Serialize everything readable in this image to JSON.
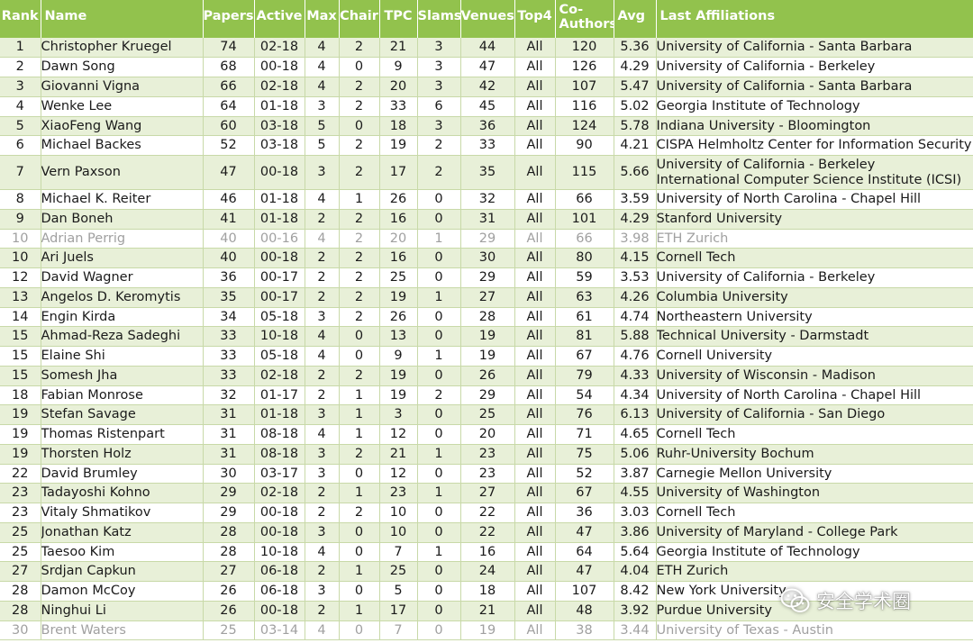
{
  "headers": {
    "rank": "Rank",
    "name": "Name",
    "papers": "Papers",
    "active": "Active",
    "max": "Max",
    "chair": "Chair",
    "tpc": "TPC",
    "slams": "Slams",
    "venues": "Venues",
    "top4": "Top4",
    "coauthors_1": "Co-",
    "coauthors_2": "Authors",
    "avg": "Avg",
    "affiliations": "Last Affiliations"
  },
  "rows": [
    {
      "rank": "1",
      "name": "Christopher Kruegel",
      "papers": "74",
      "active": "02-18",
      "max": "4",
      "chair": "2",
      "tpc": "21",
      "slams": "3",
      "venues": "44",
      "top4": "All",
      "coauthors": "120",
      "avg": "5.36",
      "affiliation": "University of California - Santa Barbara"
    },
    {
      "rank": "2",
      "name": "Dawn Song",
      "papers": "68",
      "active": "00-18",
      "max": "4",
      "chair": "0",
      "tpc": "9",
      "slams": "3",
      "venues": "47",
      "top4": "All",
      "coauthors": "126",
      "avg": "4.29",
      "affiliation": "University of California - Berkeley"
    },
    {
      "rank": "3",
      "name": "Giovanni Vigna",
      "papers": "66",
      "active": "02-18",
      "max": "4",
      "chair": "2",
      "tpc": "20",
      "slams": "3",
      "venues": "42",
      "top4": "All",
      "coauthors": "107",
      "avg": "5.47",
      "affiliation": "University of California - Santa Barbara"
    },
    {
      "rank": "4",
      "name": "Wenke Lee",
      "papers": "64",
      "active": "01-18",
      "max": "3",
      "chair": "2",
      "tpc": "33",
      "slams": "6",
      "venues": "45",
      "top4": "All",
      "coauthors": "116",
      "avg": "5.02",
      "affiliation": "Georgia Institute of Technology"
    },
    {
      "rank": "5",
      "name": "XiaoFeng Wang",
      "papers": "60",
      "active": "03-18",
      "max": "5",
      "chair": "0",
      "tpc": "18",
      "slams": "3",
      "venues": "36",
      "top4": "All",
      "coauthors": "124",
      "avg": "5.78",
      "affiliation": "Indiana University - Bloomington"
    },
    {
      "rank": "6",
      "name": "Michael Backes",
      "papers": "52",
      "active": "03-18",
      "max": "5",
      "chair": "2",
      "tpc": "19",
      "slams": "2",
      "venues": "33",
      "top4": "All",
      "coauthors": "90",
      "avg": "4.21",
      "affiliation": "CISPA Helmholtz Center for Information Security"
    },
    {
      "rank": "7",
      "name": "Vern Paxson",
      "papers": "47",
      "active": "00-18",
      "max": "3",
      "chair": "2",
      "tpc": "17",
      "slams": "2",
      "venues": "35",
      "top4": "All",
      "coauthors": "115",
      "avg": "5.66",
      "affiliation": "University of California - Berkeley",
      "affiliation2": "International Computer Science Institute (ICSI)"
    },
    {
      "rank": "8",
      "name": "Michael K. Reiter",
      "papers": "46",
      "active": "01-18",
      "max": "4",
      "chair": "1",
      "tpc": "26",
      "slams": "0",
      "venues": "32",
      "top4": "All",
      "coauthors": "66",
      "avg": "3.59",
      "affiliation": "University of North Carolina - Chapel Hill"
    },
    {
      "rank": "9",
      "name": "Dan Boneh",
      "papers": "41",
      "active": "01-18",
      "max": "2",
      "chair": "2",
      "tpc": "16",
      "slams": "0",
      "venues": "31",
      "top4": "All",
      "coauthors": "101",
      "avg": "4.29",
      "affiliation": "Stanford University"
    },
    {
      "rank": "10",
      "name": "Adrian Perrig",
      "papers": "40",
      "active": "00-16",
      "max": "4",
      "chair": "2",
      "tpc": "20",
      "slams": "1",
      "venues": "29",
      "top4": "All",
      "coauthors": "66",
      "avg": "3.98",
      "affiliation": "ETH Zurich",
      "dim": true
    },
    {
      "rank": "10",
      "name": "Ari Juels",
      "papers": "40",
      "active": "00-18",
      "max": "2",
      "chair": "2",
      "tpc": "16",
      "slams": "0",
      "venues": "30",
      "top4": "All",
      "coauthors": "80",
      "avg": "4.15",
      "affiliation": "Cornell Tech"
    },
    {
      "rank": "12",
      "name": "David Wagner",
      "papers": "36",
      "active": "00-17",
      "max": "2",
      "chair": "2",
      "tpc": "25",
      "slams": "0",
      "venues": "29",
      "top4": "All",
      "coauthors": "59",
      "avg": "3.53",
      "affiliation": "University of California - Berkeley"
    },
    {
      "rank": "13",
      "name": "Angelos D. Keromytis",
      "papers": "35",
      "active": "00-17",
      "max": "2",
      "chair": "2",
      "tpc": "19",
      "slams": "1",
      "venues": "27",
      "top4": "All",
      "coauthors": "63",
      "avg": "4.26",
      "affiliation": "Columbia University"
    },
    {
      "rank": "14",
      "name": "Engin Kirda",
      "papers": "34",
      "active": "05-18",
      "max": "3",
      "chair": "2",
      "tpc": "26",
      "slams": "0",
      "venues": "28",
      "top4": "All",
      "coauthors": "61",
      "avg": "4.74",
      "affiliation": "Northeastern University"
    },
    {
      "rank": "15",
      "name": "Ahmad-Reza Sadeghi",
      "papers": "33",
      "active": "10-18",
      "max": "4",
      "chair": "0",
      "tpc": "13",
      "slams": "0",
      "venues": "19",
      "top4": "All",
      "coauthors": "81",
      "avg": "5.88",
      "affiliation": "Technical University - Darmstadt"
    },
    {
      "rank": "15",
      "name": "Elaine Shi",
      "papers": "33",
      "active": "05-18",
      "max": "4",
      "chair": "0",
      "tpc": "9",
      "slams": "1",
      "venues": "19",
      "top4": "All",
      "coauthors": "67",
      "avg": "4.76",
      "affiliation": "Cornell University"
    },
    {
      "rank": "15",
      "name": "Somesh Jha",
      "papers": "33",
      "active": "02-18",
      "max": "2",
      "chair": "2",
      "tpc": "19",
      "slams": "0",
      "venues": "26",
      "top4": "All",
      "coauthors": "79",
      "avg": "4.33",
      "affiliation": "University of Wisconsin - Madison"
    },
    {
      "rank": "18",
      "name": "Fabian Monrose",
      "papers": "32",
      "active": "01-17",
      "max": "2",
      "chair": "1",
      "tpc": "19",
      "slams": "2",
      "venues": "29",
      "top4": "All",
      "coauthors": "54",
      "avg": "4.34",
      "affiliation": "University of North Carolina - Chapel Hill"
    },
    {
      "rank": "19",
      "name": "Stefan Savage",
      "papers": "31",
      "active": "01-18",
      "max": "3",
      "chair": "1",
      "tpc": "3",
      "slams": "0",
      "venues": "25",
      "top4": "All",
      "coauthors": "76",
      "avg": "6.13",
      "affiliation": "University of California - San Diego"
    },
    {
      "rank": "19",
      "name": "Thomas Ristenpart",
      "papers": "31",
      "active": "08-18",
      "max": "4",
      "chair": "1",
      "tpc": "12",
      "slams": "0",
      "venues": "20",
      "top4": "All",
      "coauthors": "71",
      "avg": "4.65",
      "affiliation": "Cornell Tech"
    },
    {
      "rank": "19",
      "name": "Thorsten Holz",
      "papers": "31",
      "active": "08-18",
      "max": "3",
      "chair": "2",
      "tpc": "21",
      "slams": "1",
      "venues": "23",
      "top4": "All",
      "coauthors": "75",
      "avg": "5.06",
      "affiliation": "Ruhr-University Bochum"
    },
    {
      "rank": "22",
      "name": "David Brumley",
      "papers": "30",
      "active": "03-17",
      "max": "3",
      "chair": "0",
      "tpc": "12",
      "slams": "0",
      "venues": "23",
      "top4": "All",
      "coauthors": "52",
      "avg": "3.87",
      "affiliation": "Carnegie Mellon University"
    },
    {
      "rank": "23",
      "name": "Tadayoshi Kohno",
      "papers": "29",
      "active": "02-18",
      "max": "2",
      "chair": "1",
      "tpc": "23",
      "slams": "1",
      "venues": "27",
      "top4": "All",
      "coauthors": "67",
      "avg": "4.55",
      "affiliation": "University of Washington"
    },
    {
      "rank": "23",
      "name": "Vitaly Shmatikov",
      "papers": "29",
      "active": "00-18",
      "max": "2",
      "chair": "2",
      "tpc": "10",
      "slams": "0",
      "venues": "22",
      "top4": "All",
      "coauthors": "36",
      "avg": "3.03",
      "affiliation": "Cornell Tech"
    },
    {
      "rank": "25",
      "name": "Jonathan Katz",
      "papers": "28",
      "active": "00-18",
      "max": "3",
      "chair": "0",
      "tpc": "10",
      "slams": "0",
      "venues": "22",
      "top4": "All",
      "coauthors": "47",
      "avg": "3.86",
      "affiliation": "University of Maryland - College Park"
    },
    {
      "rank": "25",
      "name": "Taesoo Kim",
      "papers": "28",
      "active": "10-18",
      "max": "4",
      "chair": "0",
      "tpc": "7",
      "slams": "1",
      "venues": "16",
      "top4": "All",
      "coauthors": "64",
      "avg": "5.64",
      "affiliation": "Georgia Institute of Technology"
    },
    {
      "rank": "27",
      "name": "Srdjan Capkun",
      "papers": "27",
      "active": "06-18",
      "max": "2",
      "chair": "1",
      "tpc": "25",
      "slams": "0",
      "venues": "24",
      "top4": "All",
      "coauthors": "47",
      "avg": "4.04",
      "affiliation": "ETH Zurich"
    },
    {
      "rank": "28",
      "name": "Damon McCoy",
      "papers": "26",
      "active": "06-18",
      "max": "3",
      "chair": "0",
      "tpc": "5",
      "slams": "0",
      "venues": "18",
      "top4": "All",
      "coauthors": "107",
      "avg": "8.42",
      "affiliation": "New York University"
    },
    {
      "rank": "28",
      "name": "Ninghui Li",
      "papers": "26",
      "active": "00-18",
      "max": "2",
      "chair": "1",
      "tpc": "17",
      "slams": "0",
      "venues": "21",
      "top4": "All",
      "coauthors": "48",
      "avg": "3.92",
      "affiliation": "Purdue University"
    },
    {
      "rank": "30",
      "name": "Brent Waters",
      "papers": "25",
      "active": "03-14",
      "max": "4",
      "chair": "0",
      "tpc": "7",
      "slams": "0",
      "venues": "19",
      "top4": "All",
      "coauthors": "38",
      "avg": "3.44",
      "affiliation": "University of Texas - Austin",
      "dim": true
    }
  ],
  "watermark": {
    "text": "安全学术圈",
    "icon": "wechat-icon"
  }
}
